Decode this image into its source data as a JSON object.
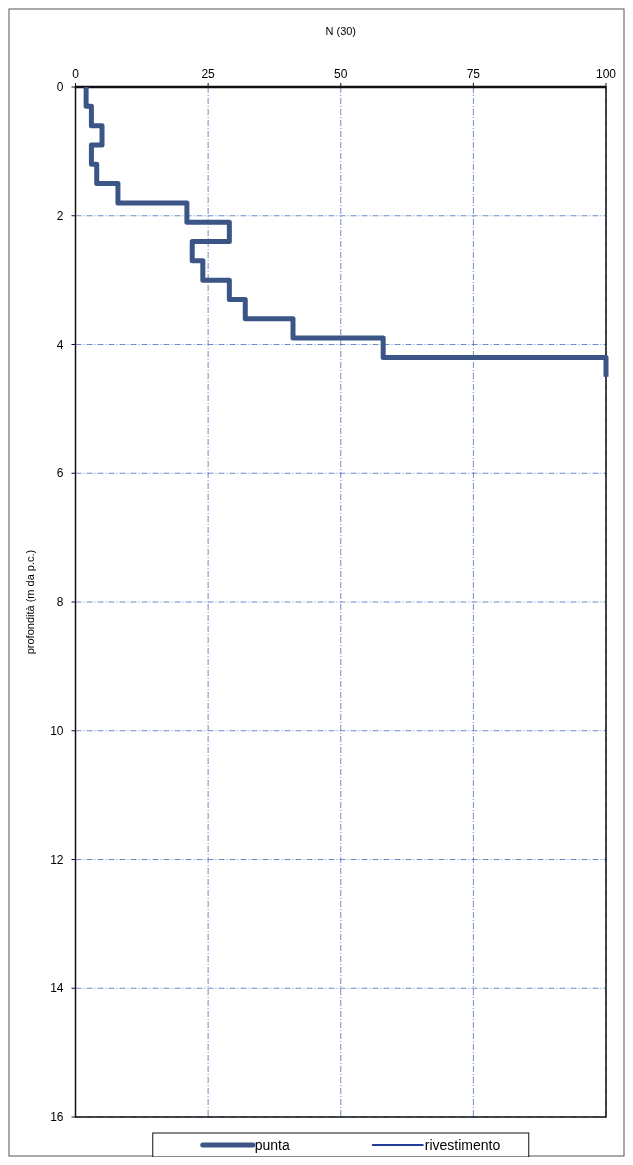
{
  "chart_data": {
    "type": "line",
    "xlabel": "N (30)",
    "ylabel": "profondità (m da p.c.)",
    "xlim": [
      0,
      100
    ],
    "xticks": [
      0,
      25,
      50,
      75,
      100
    ],
    "ylim": [
      16,
      0
    ],
    "yticks": [
      0,
      2,
      4,
      6,
      8,
      10,
      12,
      14,
      16
    ],
    "grid": true,
    "legend": "bottom",
    "line_style": "solid",
    "series": [
      {
        "name": "punta",
        "color": "#3b5586",
        "x": [
          2,
          2,
          3,
          3,
          5,
          5,
          3,
          3,
          4,
          4,
          8,
          8,
          21,
          21,
          29,
          29,
          22,
          22,
          24,
          24,
          29,
          29,
          32,
          32,
          41,
          41,
          58,
          58,
          100,
          100
        ],
        "values": [
          0,
          0.3,
          0.3,
          0.6,
          0.6,
          0.9,
          0.9,
          1.2,
          1.2,
          1.5,
          1.5,
          1.8,
          1.8,
          2.1,
          2.1,
          2.4,
          2.4,
          2.7,
          2.7,
          3.0,
          3.0,
          3.3,
          3.3,
          3.6,
          3.6,
          3.9,
          3.9,
          4.2,
          4.2,
          4.5
        ]
      },
      {
        "name": "rivestimento",
        "color": "#1f3d99"
      }
    ]
  }
}
